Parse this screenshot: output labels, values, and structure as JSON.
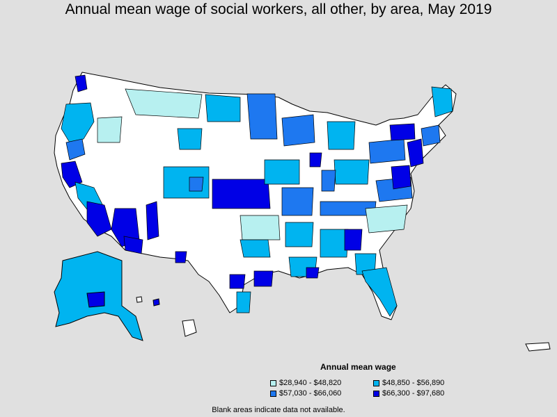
{
  "title": "Annual mean wage of social workers, all other, by area, May 2019",
  "legend": {
    "title": "Annual mean wage",
    "items": [
      {
        "label": "$28,940 - $48,820",
        "color": "#b7f0f0"
      },
      {
        "label": "$48,850 - $56,890",
        "color": "#00b4f0"
      },
      {
        "label": "$57,030 - $66,060",
        "color": "#1e78f0"
      },
      {
        "label": "$66,300 - $97,680",
        "color": "#0000e6"
      }
    ]
  },
  "footnote": "Blank areas indicate data not available.",
  "colors": {
    "background": "#e0e0e0",
    "no_data": "#ffffff",
    "border": "#000000"
  }
}
